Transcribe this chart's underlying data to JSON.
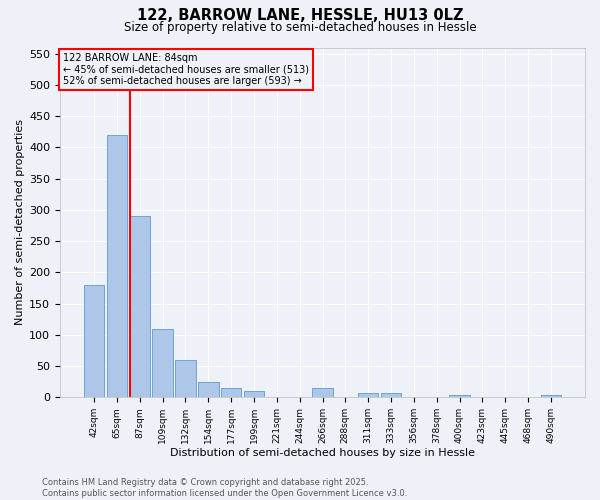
{
  "title1": "122, BARROW LANE, HESSLE, HU13 0LZ",
  "title2": "Size of property relative to semi-detached houses in Hessle",
  "xlabel": "Distribution of semi-detached houses by size in Hessle",
  "ylabel": "Number of semi-detached properties",
  "categories": [
    "42sqm",
    "65sqm",
    "87sqm",
    "109sqm",
    "132sqm",
    "154sqm",
    "177sqm",
    "199sqm",
    "221sqm",
    "244sqm",
    "266sqm",
    "288sqm",
    "311sqm",
    "333sqm",
    "356sqm",
    "378sqm",
    "400sqm",
    "423sqm",
    "445sqm",
    "468sqm",
    "490sqm"
  ],
  "values": [
    180,
    420,
    290,
    110,
    60,
    25,
    15,
    10,
    0,
    0,
    15,
    0,
    6,
    7,
    0,
    0,
    4,
    0,
    0,
    0,
    4
  ],
  "bar_color": "#aec6e8",
  "bar_edge_color": "#5b9bd5",
  "vline_color": "red",
  "vline_x_index": 1.58,
  "annotation_title": "122 BARROW LANE: 84sqm",
  "annotation_line1": "← 45% of semi-detached houses are smaller (513)",
  "annotation_line2": "52% of semi-detached houses are larger (593) →",
  "annotation_box_color": "red",
  "ylim": [
    0,
    560
  ],
  "yticks": [
    0,
    50,
    100,
    150,
    200,
    250,
    300,
    350,
    400,
    450,
    500,
    550
  ],
  "footer1": "Contains HM Land Registry data © Crown copyright and database right 2025.",
  "footer2": "Contains public sector information licensed under the Open Government Licence v3.0.",
  "bg_color": "#eef2f8",
  "grid_color": "#ffffff"
}
